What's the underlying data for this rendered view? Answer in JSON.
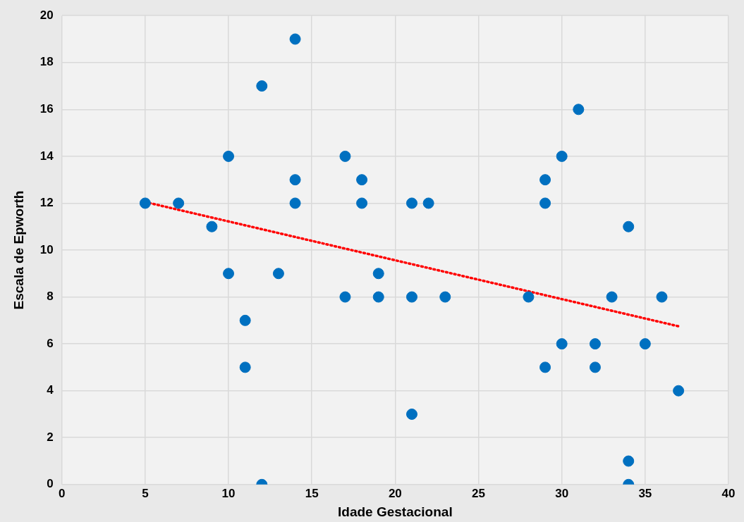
{
  "chart_data": {
    "type": "scatter",
    "xlabel": "Idade Gestacional",
    "ylabel": "Escala de Epworth",
    "xlim": [
      0,
      40
    ],
    "xticks": [
      0,
      5,
      10,
      15,
      20,
      25,
      30,
      35,
      40
    ],
    "ylim": [
      0,
      20
    ],
    "yticks": [
      0,
      2,
      4,
      6,
      8,
      10,
      12,
      14,
      16,
      18,
      20
    ],
    "grid": true,
    "legend": false,
    "marker": "circle",
    "series": [
      {
        "type": "scatter",
        "color": "#0070c0",
        "x": [
          5,
          7,
          9,
          10,
          10,
          11,
          11,
          12,
          12,
          13,
          14,
          14,
          14,
          17,
          17,
          18,
          18,
          19,
          19,
          21,
          21,
          21,
          22,
          23,
          28,
          29,
          29,
          29,
          30,
          30,
          31,
          32,
          32,
          33,
          34,
          34,
          34,
          35,
          36,
          37
        ],
        "values": [
          12,
          12,
          11,
          14,
          9,
          7,
          5,
          17,
          0,
          9,
          19,
          13,
          12,
          14,
          8,
          13,
          12,
          9,
          8,
          12,
          8,
          3,
          12,
          8,
          8,
          13,
          12,
          5,
          14,
          6,
          16,
          6,
          5,
          8,
          11,
          1,
          0,
          6,
          8,
          4
        ]
      },
      {
        "type": "line",
        "color": "#ff0000",
        "marker": "none",
        "line_style": "dotted",
        "x": [
          5,
          37
        ],
        "values": [
          12.05,
          6.75
        ]
      }
    ]
  }
}
